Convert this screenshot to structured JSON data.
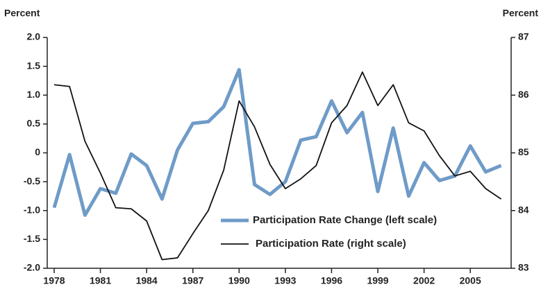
{
  "chart_data": {
    "type": "line",
    "y_label": "Percent",
    "y2_label": "Percent",
    "x": [
      1978,
      1979,
      1980,
      1981,
      1982,
      1983,
      1984,
      1985,
      1986,
      1987,
      1988,
      1989,
      1990,
      1991,
      1992,
      1993,
      1994,
      1995,
      1996,
      1997,
      1998,
      1999,
      2000,
      2001,
      2002,
      2003,
      2004,
      2005,
      2006,
      2007
    ],
    "series": [
      {
        "name": "Participation Rate Change (left scale)",
        "color": "#6f9bc8",
        "axis": "y",
        "values": [
          -0.95,
          -0.03,
          -1.08,
          -0.62,
          -0.7,
          -0.02,
          -0.22,
          -0.8,
          0.05,
          0.51,
          0.54,
          0.8,
          1.44,
          -0.55,
          -0.72,
          -0.5,
          0.22,
          0.28,
          0.9,
          0.35,
          0.7,
          -0.67,
          0.43,
          -0.75,
          -0.17,
          -0.48,
          -0.4,
          0.12,
          -0.33,
          -0.22
        ]
      },
      {
        "name": "Participation Rate (right scale)",
        "color": "#111111",
        "axis": "y2",
        "values": [
          86.18,
          86.15,
          85.2,
          84.65,
          84.05,
          84.03,
          83.82,
          83.15,
          83.18,
          83.6,
          84.0,
          84.7,
          85.9,
          85.45,
          84.8,
          84.38,
          84.55,
          84.78,
          85.52,
          85.82,
          86.4,
          85.82,
          86.18,
          85.52,
          85.38,
          84.95,
          84.6,
          84.68,
          84.38,
          84.2
        ]
      }
    ],
    "xlim": [
      1977.55,
      2007.65
    ],
    "xticks": [
      1978,
      1981,
      1984,
      1987,
      1990,
      1993,
      1996,
      1999,
      2002,
      2005
    ],
    "ylim": [
      -2,
      2
    ],
    "yticks": [
      {
        "value": 2,
        "label": "2.0"
      },
      1.5,
      {
        "value": 1,
        "label": "1.0"
      },
      0.5,
      0,
      -0.5,
      {
        "value": -1,
        "label": "-1.0"
      },
      -1.5,
      {
        "value": -2,
        "label": "-2.0"
      }
    ],
    "y2lim": [
      83,
      87
    ],
    "y2ticks": [
      83,
      84,
      85,
      86,
      87
    ],
    "grid": false
  }
}
